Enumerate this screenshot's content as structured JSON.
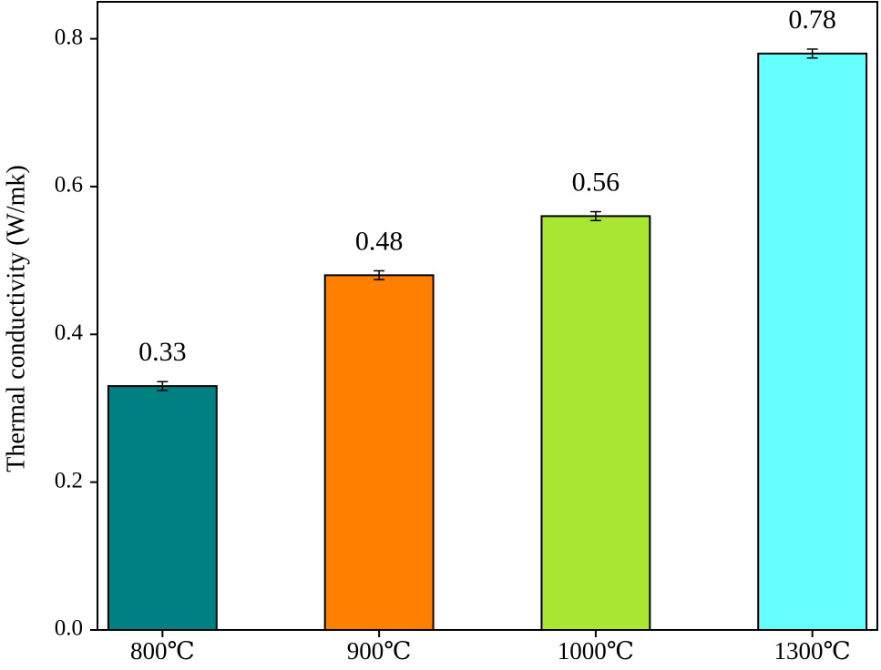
{
  "chart_data": {
    "type": "bar",
    "y_label": "Thermal conductivity (W/mk)",
    "categories": [
      "800℃",
      "900℃",
      "1000℃",
      "1300℃"
    ],
    "values": [
      0.33,
      0.48,
      0.56,
      0.78
    ],
    "errors": [
      0.006,
      0.006,
      0.006,
      0.006
    ],
    "colors": [
      "#008080",
      "#ff8000",
      "#a8e632",
      "#66ffff"
    ],
    "ylim": [
      0,
      0.85
    ],
    "yticks": [
      {
        "value": 0,
        "label": "0.0"
      },
      0.2,
      0.4,
      0.6,
      0.8
    ],
    "grid": false
  }
}
